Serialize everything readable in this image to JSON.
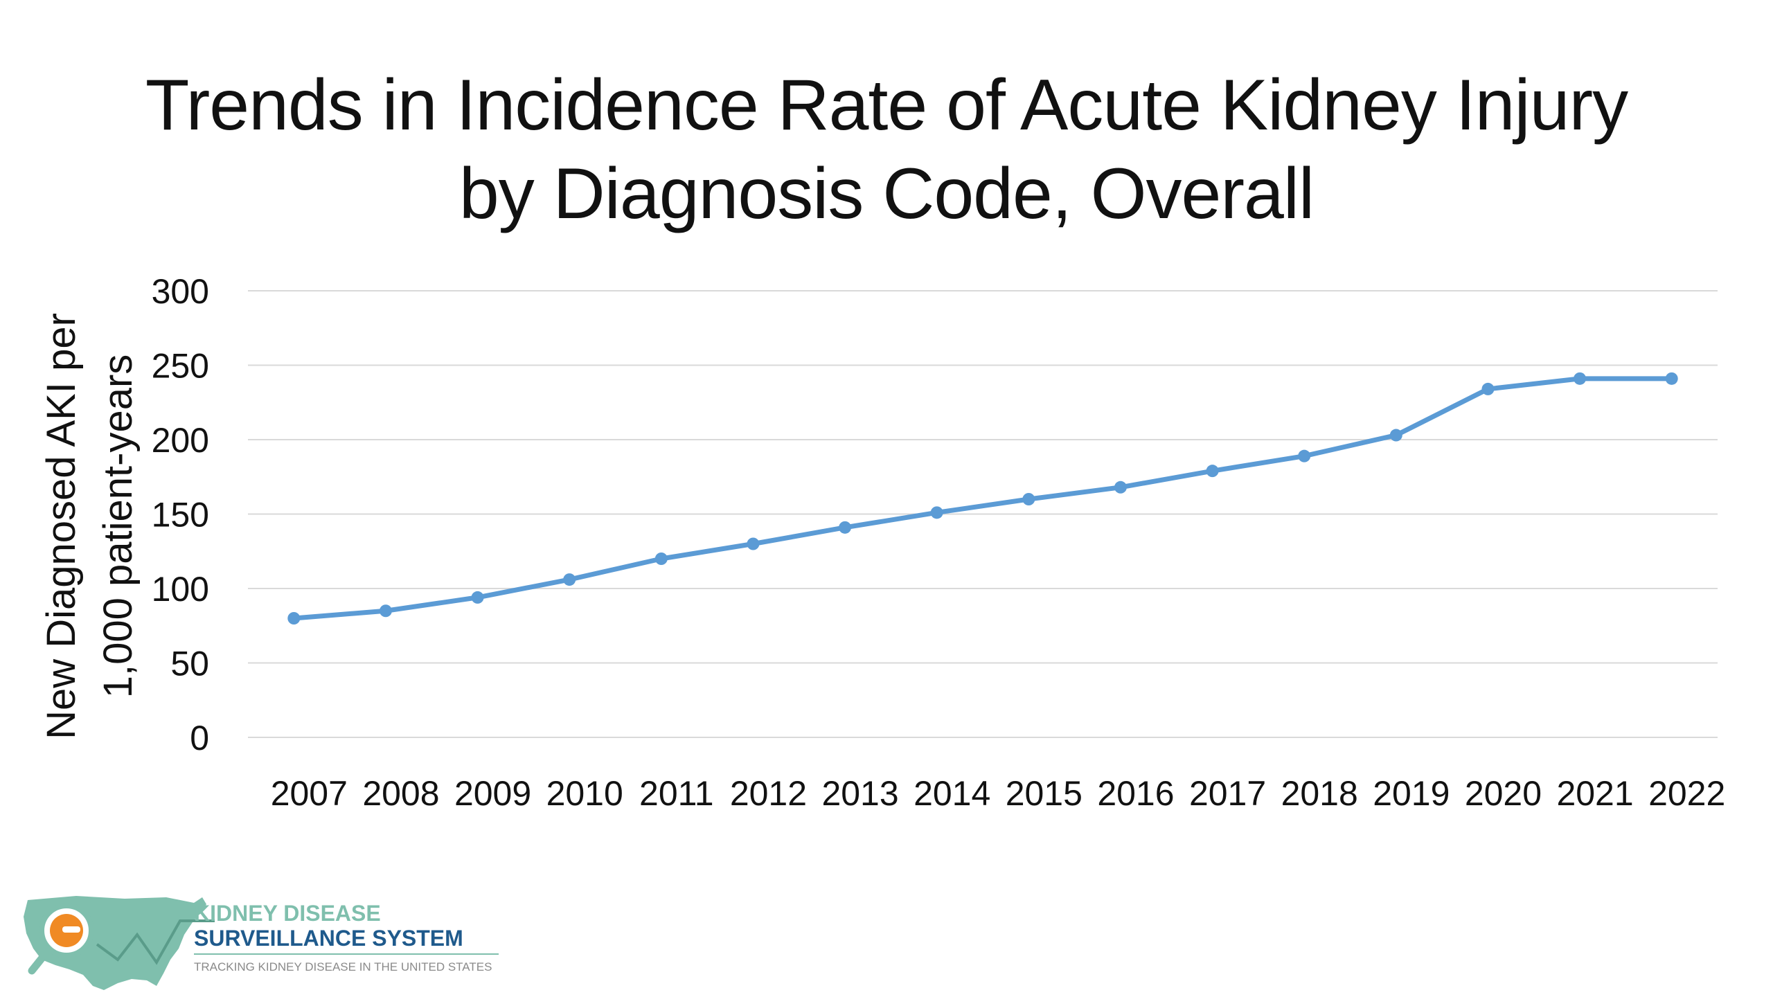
{
  "chart_data": {
    "type": "line",
    "title": "Trends in Incidence Rate of Acute Kidney Injury by Diagnosis Code, Overall",
    "title_lines": [
      "Trends in Incidence Rate of Acute Kidney Injury",
      "by Diagnosis Code, Overall"
    ],
    "ylabel_lines": [
      "New Diagnosed AKI per",
      "1,000 patient-years"
    ],
    "xlabel": "",
    "categories": [
      "2007",
      "2008",
      "2009",
      "2010",
      "2011",
      "2012",
      "2013",
      "2014",
      "2015",
      "2016",
      "2017",
      "2018",
      "2019",
      "2020",
      "2021",
      "2022"
    ],
    "series": [
      {
        "values": [
          80,
          85,
          94,
          106,
          120,
          130,
          141,
          151,
          160,
          168,
          179,
          189,
          203,
          234,
          241,
          241
        ]
      }
    ],
    "ylim": [
      0,
      300
    ],
    "yticks": [
      0,
      50,
      100,
      150,
      200,
      250,
      300
    ],
    "grid": true,
    "legend": "none",
    "line_color": "#5b9bd5",
    "grid_color": "#d9d9d9"
  },
  "logo": {
    "line1": "KIDNEY DISEASE",
    "line2": "SURVEILLANCE SYSTEM",
    "tagline": "TRACKING KIDNEY DISEASE IN THE UNITED STATES",
    "icon": "magnifier-us-map-icon",
    "colors": {
      "teal": "#7fbfad",
      "navy": "#1f5a8c",
      "orange": "#f08a24",
      "gray": "#8a8a8a"
    }
  }
}
